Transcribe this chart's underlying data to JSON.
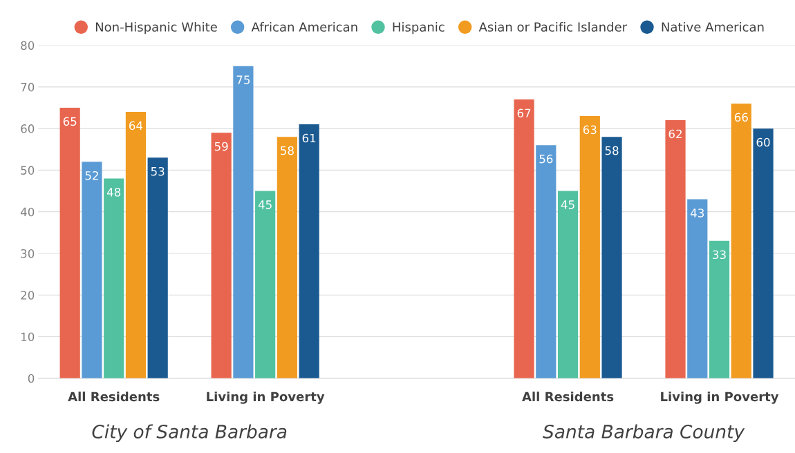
{
  "chart_data": {
    "type": "bar",
    "categories": [
      "All Residents",
      "Living in Poverty",
      null,
      "All Residents",
      "Living in Poverty"
    ],
    "series": [
      {
        "name": "Non-Hispanic White",
        "color": "#e8664f",
        "values": [
          65,
          59,
          null,
          67,
          62
        ]
      },
      {
        "name": "African American",
        "color": "#5b9bd5",
        "values": [
          52,
          75,
          null,
          56,
          43
        ]
      },
      {
        "name": "Hispanic",
        "color": "#52c1a0",
        "values": [
          48,
          45,
          null,
          45,
          33
        ]
      },
      {
        "name": "Asian or Pacific Islander",
        "color": "#f19b20",
        "values": [
          64,
          58,
          null,
          63,
          66
        ]
      },
      {
        "name": "Native American",
        "color": "#1b5a91",
        "values": [
          53,
          61,
          null,
          58,
          60
        ]
      }
    ],
    "annotations": [
      "City of Santa Barbara",
      "Santa Barbara County"
    ],
    "ylim": [
      0,
      80
    ],
    "yticks": [
      0,
      10,
      20,
      30,
      40,
      50,
      60,
      70,
      80
    ],
    "grid": "y",
    "legend": "top",
    "data_labels": true
  }
}
